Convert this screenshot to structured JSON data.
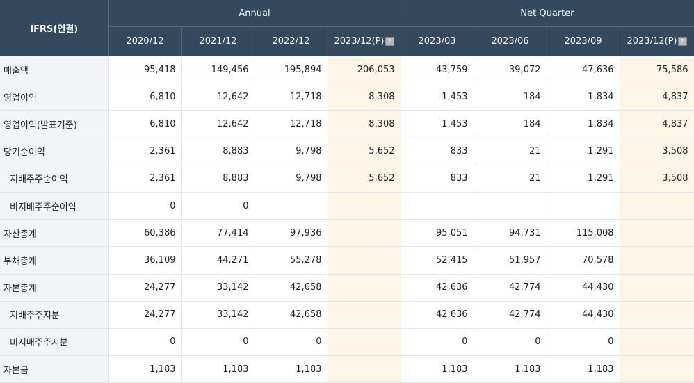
{
  "header": {
    "corner": "IFRS(연결)",
    "annual": "Annual",
    "quarter": "Net Quarter",
    "periods": [
      "2020/12",
      "2021/12",
      "2022/12",
      "2023/12(P)",
      "2023/03",
      "2023/06",
      "2023/09",
      "2023/12(P)"
    ],
    "estimate_columns": [
      3,
      7
    ]
  },
  "rows": [
    {
      "label": "매출액",
      "sub": false,
      "values": [
        "95,418",
        "149,456",
        "195,894",
        "206,053",
        "43,759",
        "39,072",
        "47,636",
        "75,586"
      ]
    },
    {
      "label": "영업이익",
      "sub": false,
      "values": [
        "6,810",
        "12,642",
        "12,718",
        "8,308",
        "1,453",
        "184",
        "1,834",
        "4,837"
      ]
    },
    {
      "label": "영업이익(발표기준)",
      "sub": false,
      "values": [
        "6,810",
        "12,642",
        "12,718",
        "8,308",
        "1,453",
        "184",
        "1,834",
        "4,837"
      ]
    },
    {
      "label": "당기순이익",
      "sub": false,
      "values": [
        "2,361",
        "8,883",
        "9,798",
        "5,652",
        "833",
        "21",
        "1,291",
        "3,508"
      ]
    },
    {
      "label": "지배주주순이익",
      "sub": true,
      "values": [
        "2,361",
        "8,883",
        "9,798",
        "5,652",
        "833",
        "21",
        "1,291",
        "3,508"
      ]
    },
    {
      "label": "비지배주주순이익",
      "sub": true,
      "values": [
        "0",
        "0",
        "",
        "",
        "",
        "",
        "",
        ""
      ]
    },
    {
      "label": "자산총계",
      "sub": false,
      "values": [
        "60,386",
        "77,414",
        "97,936",
        "",
        "95,051",
        "94,731",
        "115,008",
        ""
      ]
    },
    {
      "label": "부채총계",
      "sub": false,
      "values": [
        "36,109",
        "44,271",
        "55,278",
        "",
        "52,415",
        "51,957",
        "70,578",
        ""
      ]
    },
    {
      "label": "자본총계",
      "sub": false,
      "values": [
        "24,277",
        "33,142",
        "42,658",
        "",
        "42,636",
        "42,774",
        "44,430",
        ""
      ]
    },
    {
      "label": "지배주주지분",
      "sub": true,
      "values": [
        "24,277",
        "33,142",
        "42,658",
        "",
        "42,636",
        "42,774",
        "44,430",
        ""
      ]
    },
    {
      "label": "비지배주주지분",
      "sub": true,
      "values": [
        "0",
        "0",
        "0",
        "",
        "0",
        "0",
        "0",
        ""
      ]
    },
    {
      "label": "자본금",
      "sub": false,
      "values": [
        "1,183",
        "1,183",
        "1,183",
        "",
        "1,183",
        "1,183",
        "1,183",
        ""
      ]
    }
  ]
}
